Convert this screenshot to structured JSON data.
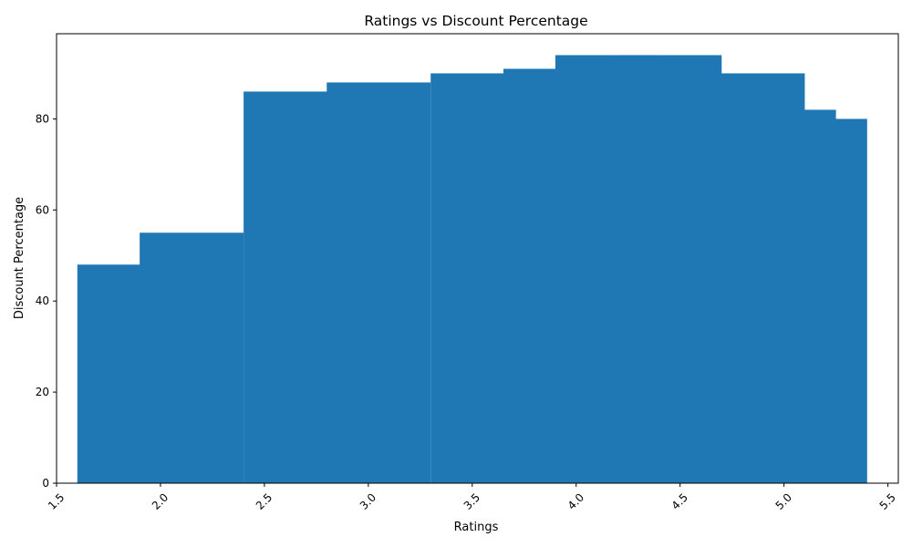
{
  "chart_data": {
    "type": "bar",
    "title": "Ratings vs Discount Percentage",
    "xlabel": "Ratings",
    "ylabel": "Discount Percentage",
    "bar_width": 0.5,
    "x": [
      1.85,
      2.15,
      2.65,
      3.05,
      3.55,
      3.9,
      4.15,
      4.45,
      4.85,
      5.0,
      5.15
    ],
    "values": [
      48,
      55,
      86,
      88,
      90,
      91,
      94,
      94,
      90,
      82,
      80
    ],
    "xlim": [
      1.5,
      5.55
    ],
    "ylim": [
      0,
      98.7
    ],
    "xticks": [
      "1.5",
      "2.0",
      "2.5",
      "3.0",
      "3.5",
      "4.0",
      "4.5",
      "5.0",
      "5.5"
    ],
    "yticks": [
      "0",
      "20",
      "40",
      "60",
      "80"
    ],
    "xtick_rotation": 45,
    "bar_color": "#1f77b4",
    "grid": false,
    "legend": "none"
  }
}
